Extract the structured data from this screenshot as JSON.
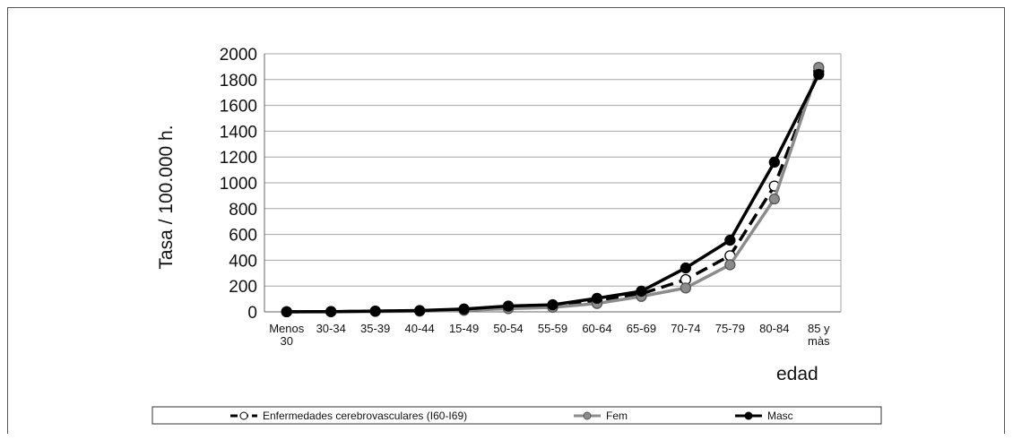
{
  "chart_data": {
    "type": "line",
    "title": "",
    "xlabel": "edad",
    "ylabel": "Tasa / 100.000 h.",
    "ylim": [
      0,
      2000
    ],
    "yticks": [
      0,
      200,
      400,
      600,
      800,
      1000,
      1200,
      1400,
      1600,
      1800,
      2000
    ],
    "grid": true,
    "legend_position": "bottom",
    "categories": [
      [
        "Menos",
        "30"
      ],
      [
        "30-34"
      ],
      [
        "35-39"
      ],
      [
        "40-44"
      ],
      [
        "15-49"
      ],
      [
        "50-54"
      ],
      [
        "55-59"
      ],
      [
        "60-64"
      ],
      [
        "65-69"
      ],
      [
        "70-74"
      ],
      [
        "75-79"
      ],
      [
        "80-84"
      ],
      [
        "85 y",
        "màs"
      ]
    ],
    "series": [
      {
        "name": "Enfermedades cerebrovasculares (I60-I69)",
        "color": "#000000",
        "marker_fill": "#ffffff",
        "dashed": true,
        "values": [
          1,
          2,
          5,
          8,
          17,
          35,
          45,
          85,
          140,
          250,
          435,
          975,
          1865
        ]
      },
      {
        "name": "Fem",
        "color": "#8c8c8c",
        "marker_fill": "#8c8c8c",
        "dashed": false,
        "values": [
          1,
          1,
          3,
          5,
          12,
          25,
          35,
          65,
          120,
          185,
          365,
          875,
          1895
        ]
      },
      {
        "name": "Masc",
        "color": "#000000",
        "marker_fill": "#000000",
        "dashed": false,
        "values": [
          1,
          2,
          6,
          10,
          22,
          45,
          55,
          105,
          160,
          340,
          555,
          1160,
          1840
        ]
      }
    ]
  }
}
